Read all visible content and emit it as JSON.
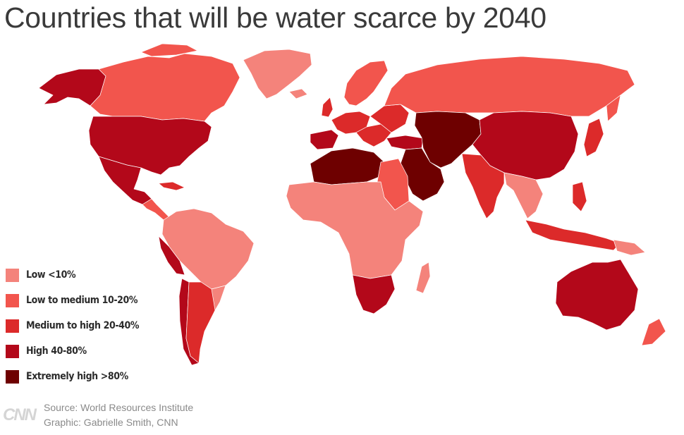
{
  "title": "Countries that will be water scarce by 2040",
  "legend": [
    {
      "label": "Low <10%",
      "color": "#f4837b"
    },
    {
      "label": "Low to medium 10-20%",
      "color": "#f2554d"
    },
    {
      "label": "Medium to high 20-40%",
      "color": "#dc2a2a"
    },
    {
      "label": "High 40-80%",
      "color": "#b3081a"
    },
    {
      "label": "Extremely high >80%",
      "color": "#6e0000"
    }
  ],
  "credits": {
    "logo": "CNN",
    "source": "Source: World Resources Institute",
    "graphic": "Graphic: Gabrielle Smith, CNN"
  }
}
